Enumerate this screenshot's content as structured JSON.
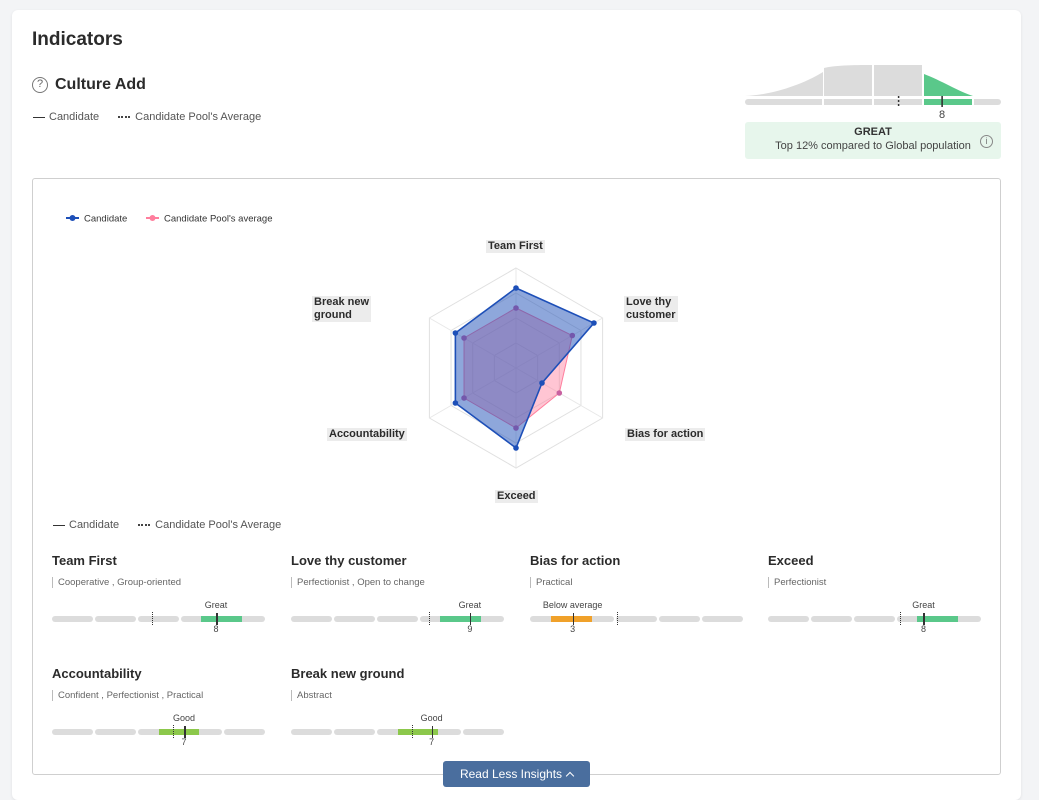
{
  "page_title": "Indicators",
  "section": {
    "title": "Culture Add",
    "legend": {
      "candidate": "Candidate",
      "pool": "Candidate Pool's Average"
    }
  },
  "distribution": {
    "value": "8",
    "value_fraction": 0.77,
    "pool_fraction": 0.6,
    "rating": "GREAT",
    "description": "Top 12% compared to Global population",
    "accent_color": "#5ac88a"
  },
  "chart_data": {
    "type": "radar",
    "legend": [
      {
        "name": "Candidate",
        "color": "#1d4fb8"
      },
      {
        "name": "Candidate Pool's average",
        "color": "#ff7e9d"
      }
    ],
    "axes": [
      "Team First",
      "Love thy customer",
      "Bias for action",
      "Exceed",
      "Accountability",
      "Break new ground"
    ],
    "axis_label_lines": [
      [
        "Team First"
      ],
      [
        "Love thy",
        "customer"
      ],
      [
        "Bias for action"
      ],
      [
        "Exceed"
      ],
      [
        "Accountability"
      ],
      [
        "Break new",
        "ground"
      ]
    ],
    "max": 10,
    "series": [
      {
        "name": "Candidate",
        "values": [
          8,
          9,
          3,
          8,
          7,
          7
        ],
        "color": "#1d4fb8"
      },
      {
        "name": "Candidate Pool's average",
        "values": [
          6,
          6.5,
          5,
          6,
          6,
          6
        ],
        "color": "#ff7e9d"
      }
    ]
  },
  "legend_mid": {
    "candidate": "Candidate",
    "pool": "Candidate Pool's Average"
  },
  "traits": [
    {
      "title": "Team First",
      "desc": "Cooperative , Group-oriented",
      "label": "Great",
      "value": "8",
      "score": 0.77,
      "pool": 0.47,
      "color": "#5ac88a",
      "hl_start": 0.7,
      "hl_end": 0.89
    },
    {
      "title": "Love thy customer",
      "desc": "Perfectionist , Open to change",
      "label": "Great",
      "value": "9",
      "score": 0.84,
      "pool": 0.65,
      "color": "#5ac88a",
      "hl_start": 0.7,
      "hl_end": 0.89
    },
    {
      "title": "Bias for action",
      "desc": "Practical",
      "label": "Below average",
      "value": "3",
      "score": 0.2,
      "pool": 0.41,
      "color": "#f0a12a",
      "hl_start": 0.1,
      "hl_end": 0.29
    },
    {
      "title": "Exceed",
      "desc": "Perfectionist",
      "label": "Great",
      "value": "8",
      "score": 0.73,
      "pool": 0.62,
      "color": "#5ac88a",
      "hl_start": 0.7,
      "hl_end": 0.89
    },
    {
      "title": "Accountability",
      "desc": "Confident , Perfectionist , Practical",
      "label": "Good",
      "value": "7",
      "score": 0.62,
      "pool": 0.57,
      "color": "#8cc84b",
      "hl_start": 0.5,
      "hl_end": 0.69
    },
    {
      "title": "Break new ground",
      "desc": "Abstract",
      "label": "Good",
      "value": "7",
      "score": 0.66,
      "pool": 0.57,
      "color": "#8cc84b",
      "hl_start": 0.5,
      "hl_end": 0.69
    }
  ],
  "read_less_button": "Read Less Insights"
}
